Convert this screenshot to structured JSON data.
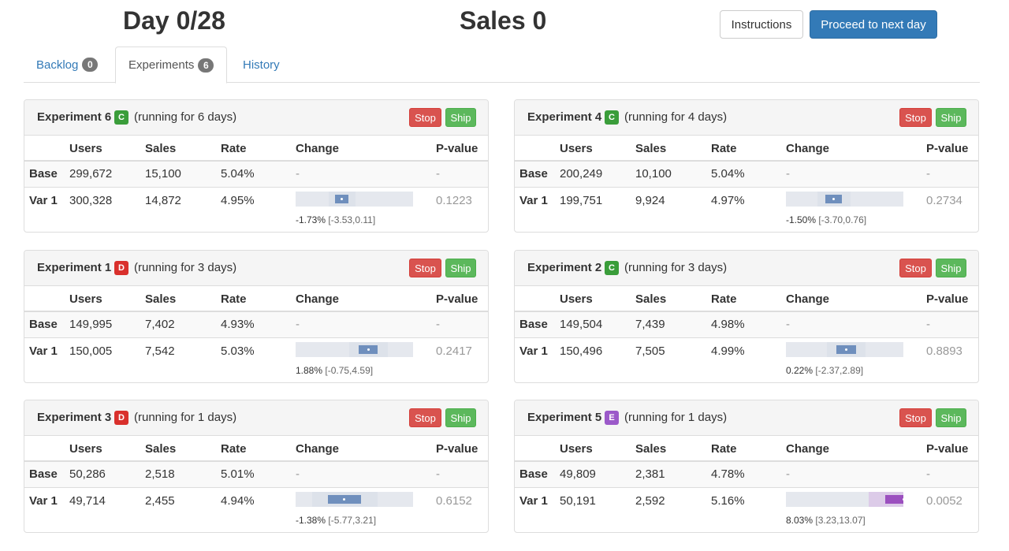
{
  "header": {
    "day": "Day 0/28",
    "sales": "Sales 0",
    "instructions_label": "Instructions",
    "proceed_label": "Proceed to next day"
  },
  "tabs": [
    {
      "label": "Backlog",
      "badge": "0",
      "active": false
    },
    {
      "label": "Experiments",
      "badge": "6",
      "active": true
    },
    {
      "label": "History",
      "badge": null,
      "active": false
    }
  ],
  "columns": [
    "Users",
    "Sales",
    "Rate",
    "Change",
    "P-value"
  ],
  "stop_label": "Stop",
  "ship_label": "Ship",
  "colors": {
    "badge_C": "#3a9d3a",
    "badge_D": "#d9302c",
    "badge_E": "#9b59c9",
    "bar_track": "#e5e8ee",
    "bar_ci_blue": "#dde2ea",
    "bar_est_blue": "#6f8fbd",
    "bar_ci_purple": "#dccbe8",
    "bar_est_purple": "#9b4fbf"
  },
  "experiments": [
    {
      "name": "Experiment 6",
      "badge": "C",
      "running": "(running for 6 days)",
      "base": {
        "label": "Base",
        "users": "299,672",
        "sales": "15,100",
        "rate": "5.04%",
        "change": "-",
        "pvalue": "-"
      },
      "var": {
        "label": "Var 1",
        "users": "300,328",
        "sales": "14,872",
        "rate": "4.95%",
        "change": "-1.73%",
        "ci": "[-3.53,0.11]",
        "pvalue": "0.1223",
        "estimate": -1.73,
        "ci_low": -3.53,
        "ci_high": 0.11
      }
    },
    {
      "name": "Experiment 4",
      "badge": "C",
      "running": "(running for 4 days)",
      "base": {
        "label": "Base",
        "users": "200,249",
        "sales": "10,100",
        "rate": "5.04%",
        "change": "-",
        "pvalue": "-"
      },
      "var": {
        "label": "Var 1",
        "users": "199,751",
        "sales": "9,924",
        "rate": "4.97%",
        "change": "-1.50%",
        "ci": "[-3.70,0.76]",
        "pvalue": "0.2734",
        "estimate": -1.5,
        "ci_low": -3.7,
        "ci_high": 0.76
      }
    },
    {
      "name": "Experiment 1",
      "badge": "D",
      "running": "(running for 3 days)",
      "base": {
        "label": "Base",
        "users": "149,995",
        "sales": "7,402",
        "rate": "4.93%",
        "change": "-",
        "pvalue": "-"
      },
      "var": {
        "label": "Var 1",
        "users": "150,005",
        "sales": "7,542",
        "rate": "5.03%",
        "change": "1.88%",
        "ci": "[-0.75,4.59]",
        "pvalue": "0.2417",
        "estimate": 1.88,
        "ci_low": -0.75,
        "ci_high": 4.59
      }
    },
    {
      "name": "Experiment 2",
      "badge": "C",
      "running": "(running for 3 days)",
      "base": {
        "label": "Base",
        "users": "149,504",
        "sales": "7,439",
        "rate": "4.98%",
        "change": "-",
        "pvalue": "-"
      },
      "var": {
        "label": "Var 1",
        "users": "150,496",
        "sales": "7,505",
        "rate": "4.99%",
        "change": "0.22%",
        "ci": "[-2.37,2.89]",
        "pvalue": "0.8893",
        "estimate": 0.22,
        "ci_low": -2.37,
        "ci_high": 2.89
      }
    },
    {
      "name": "Experiment 3",
      "badge": "D",
      "running": "(running for 1 days)",
      "base": {
        "label": "Base",
        "users": "50,286",
        "sales": "2,518",
        "rate": "5.01%",
        "change": "-",
        "pvalue": "-"
      },
      "var": {
        "label": "Var 1",
        "users": "49,714",
        "sales": "2,455",
        "rate": "4.94%",
        "change": "-1.38%",
        "ci": "[-5.77,3.21]",
        "pvalue": "0.6152",
        "estimate": -1.38,
        "ci_low": -5.77,
        "ci_high": 3.21
      }
    },
    {
      "name": "Experiment 5",
      "badge": "E",
      "running": "(running for 1 days)",
      "base": {
        "label": "Base",
        "users": "49,809",
        "sales": "2,381",
        "rate": "4.78%",
        "change": "-",
        "pvalue": "-"
      },
      "var": {
        "label": "Var 1",
        "users": "50,191",
        "sales": "2,592",
        "rate": "5.16%",
        "change": "8.03%",
        "ci": "[3.23,13.07]",
        "pvalue": "0.0052",
        "estimate": 8.03,
        "ci_low": 3.23,
        "ci_high": 13.07
      }
    }
  ]
}
